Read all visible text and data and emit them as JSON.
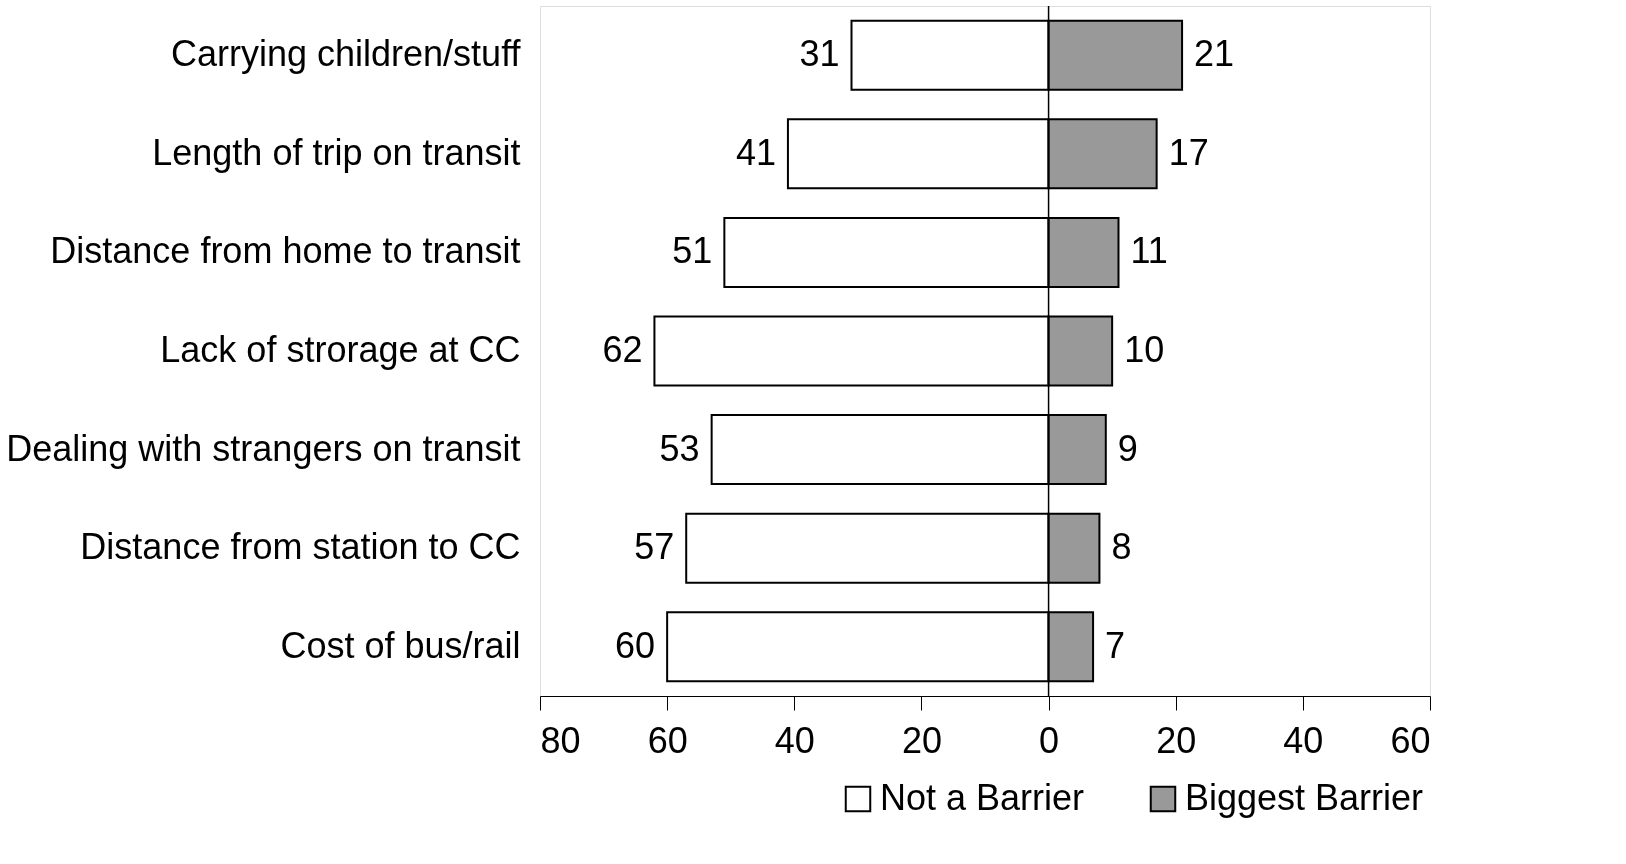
{
  "chart_data": {
    "type": "bar",
    "orientation": "horizontal",
    "categories": [
      "Carrying children/stuff",
      "Length of trip on transit",
      "Distance from home to transit",
      "Lack of strorage at CC",
      "Dealing with strangers on transit",
      "Distance from station to CC",
      "Cost of bus/rail"
    ],
    "series": [
      {
        "name": "Not a Barrier",
        "color": "#ffffff",
        "values": [
          31,
          41,
          51,
          62,
          53,
          57,
          60
        ],
        "base": [
          -31,
          -41,
          -51,
          -62,
          -53,
          -57,
          -60
        ]
      },
      {
        "name": "Biggest Barrier",
        "color": "#999999",
        "values": [
          21,
          17,
          11,
          10,
          9,
          8,
          7
        ]
      }
    ],
    "data_labels": true,
    "xlim": [
      -80,
      60
    ],
    "xticks": [
      {
        "value": -80,
        "label": "80"
      },
      {
        "value": -60,
        "label": "60"
      },
      {
        "value": -40,
        "label": "40"
      },
      {
        "value": -20,
        "label": "20"
      },
      0,
      20,
      40,
      60
    ],
    "ref_lines": [
      {
        "axis": "x",
        "value": 0,
        "label": null,
        "color": "#000000"
      }
    ],
    "grid": false,
    "legend": "bottom right"
  }
}
